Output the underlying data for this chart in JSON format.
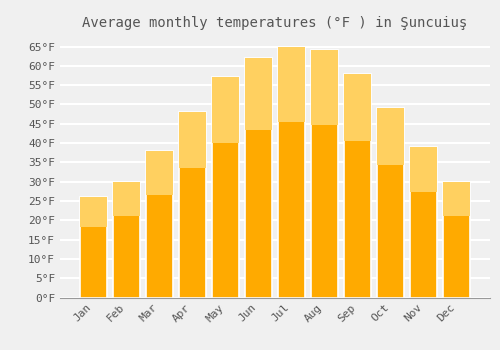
{
  "title": "Average monthly temperatures (°F ) in Şuncuiuş",
  "months": [
    "Jan",
    "Feb",
    "Mar",
    "Apr",
    "May",
    "Jun",
    "Jul",
    "Aug",
    "Sep",
    "Oct",
    "Nov",
    "Dec"
  ],
  "values": [
    26,
    30,
    38,
    48,
    57,
    62,
    65,
    64,
    58,
    49,
    39,
    30
  ],
  "bar_color_main": "#FFAA00",
  "bar_color_light": "#FFD060",
  "bar_edge_color": "#FFFFFF",
  "background_color": "#F0F0F0",
  "grid_color": "#FFFFFF",
  "text_color": "#555555",
  "ylim": [
    0,
    68
  ],
  "yticks": [
    0,
    5,
    10,
    15,
    20,
    25,
    30,
    35,
    40,
    45,
    50,
    55,
    60,
    65
  ],
  "ylabel_suffix": "°F",
  "title_fontsize": 10,
  "tick_fontsize": 8
}
